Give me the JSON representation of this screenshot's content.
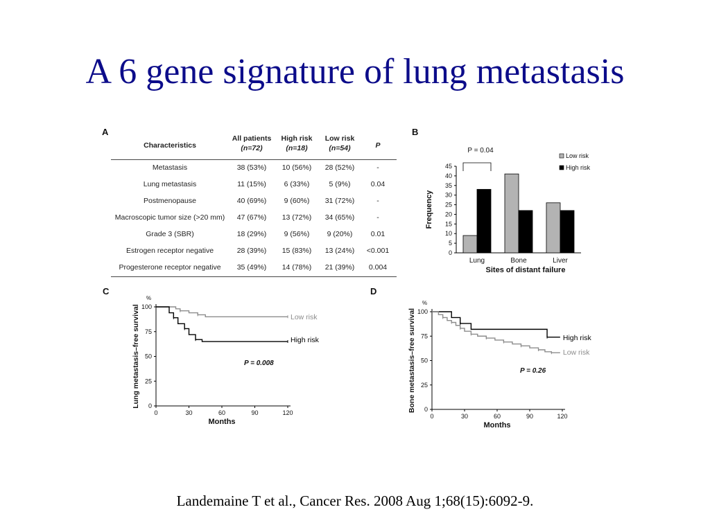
{
  "slide": {
    "title": "A 6 gene signature of lung metastasis",
    "citation": "Landemaine T et al., Cancer Res. 2008 Aug 1;68(15):6092-9."
  },
  "panel_a": {
    "letter": "A",
    "headers": {
      "characteristics": "Characteristics",
      "all_patients": "All patients",
      "all_patients_n": "(n=72)",
      "high_risk": "High risk",
      "high_risk_n": "(n=18)",
      "low_risk": "Low risk",
      "low_risk_n": "(n=54)",
      "p": "P"
    },
    "rows": [
      {
        "characteristic": "Metastasis",
        "all": "38 (53%)",
        "high": "10 (56%)",
        "low": "28 (52%)",
        "p": "-"
      },
      {
        "characteristic": "Lung metastasis",
        "all": "11 (15%)",
        "high": "6 (33%)",
        "low": "5 (9%)",
        "p": "0.04"
      },
      {
        "characteristic": "Postmenopause",
        "all": "40 (69%)",
        "high": "9 (60%)",
        "low": "31 (72%)",
        "p": "-"
      },
      {
        "characteristic": "Macroscopic tumor size (>20 mm)",
        "all": "47 (67%)",
        "high": "13 (72%)",
        "low": "34 (65%)",
        "p": "-"
      },
      {
        "characteristic": "Grade 3 (SBR)",
        "all": "18 (29%)",
        "high": "9 (56%)",
        "low": "9 (20%)",
        "p": "0.01"
      },
      {
        "characteristic": "Estrogen receptor negative",
        "all": "28 (39%)",
        "high": "15 (83%)",
        "low": "13 (24%)",
        "p": "<0.001"
      },
      {
        "characteristic": "Progesterone receptor negative",
        "all": "35 (49%)",
        "high": "14 (78%)",
        "low": "21 (39%)",
        "p": "0.004"
      }
    ]
  },
  "panel_b": {
    "letter": "B"
  },
  "panel_c": {
    "letter": "C"
  },
  "panel_d": {
    "letter": "D"
  },
  "chart_data": [
    {
      "panel": "B",
      "type": "bar",
      "categories": [
        "Lung",
        "Bone",
        "Liver"
      ],
      "series": [
        {
          "name": "Low risk",
          "color": "#b3b3b3",
          "values": [
            9,
            41,
            26
          ]
        },
        {
          "name": "High risk",
          "color": "#000000",
          "values": [
            33,
            22,
            22
          ]
        }
      ],
      "xlabel": "Sites of distant failure",
      "ylabel": "Frequency",
      "ylim": [
        0,
        45
      ],
      "yticks": [
        0,
        5,
        10,
        15,
        20,
        25,
        30,
        35,
        40,
        45
      ],
      "legend_position": "top-right",
      "annotation": {
        "label": "P = 0.04",
        "category": "Lung"
      }
    },
    {
      "panel": "C",
      "type": "line",
      "ylabel": "Lung metastasis–free survival",
      "yunit": "%",
      "xlabel": "Months",
      "xlim": [
        0,
        120
      ],
      "ylim": [
        0,
        100
      ],
      "xticks": [
        0,
        30,
        60,
        90,
        120
      ],
      "yticks": [
        0,
        25,
        50,
        75,
        100
      ],
      "annotation": "P = 0.008",
      "series": [
        {
          "name": "Low risk",
          "color": "#8c8c8c",
          "x": [
            0,
            18,
            22,
            30,
            38,
            45,
            120
          ],
          "y": [
            100,
            98,
            96,
            94,
            92,
            90,
            90
          ]
        },
        {
          "name": "High risk",
          "color": "#000000",
          "x": [
            0,
            12,
            16,
            20,
            26,
            30,
            36,
            42,
            120
          ],
          "y": [
            100,
            94,
            89,
            83,
            78,
            72,
            67,
            65,
            65
          ]
        }
      ]
    },
    {
      "panel": "D",
      "type": "line",
      "ylabel": "Bone metastasis–free survival",
      "yunit": "%",
      "xlabel": "Months",
      "xlim": [
        0,
        120
      ],
      "ylim": [
        0,
        100
      ],
      "xticks": [
        0,
        30,
        60,
        90,
        120
      ],
      "yticks": [
        0,
        25,
        50,
        75,
        100
      ],
      "annotation": "P = 0.26",
      "series": [
        {
          "name": "High risk",
          "color": "#000000",
          "x": [
            0,
            18,
            26,
            36,
            106,
            118
          ],
          "y": [
            100,
            94,
            88,
            82,
            74,
            74
          ]
        },
        {
          "name": "Low risk",
          "color": "#8c8c8c",
          "x": [
            0,
            6,
            10,
            14,
            18,
            22,
            26,
            30,
            36,
            42,
            50,
            58,
            66,
            74,
            82,
            90,
            98,
            104,
            110,
            118
          ],
          "y": [
            100,
            97,
            94,
            91,
            89,
            86,
            83,
            80,
            77,
            75,
            73,
            71,
            69,
            67,
            65,
            63,
            61,
            59,
            58,
            58
          ]
        }
      ]
    }
  ]
}
